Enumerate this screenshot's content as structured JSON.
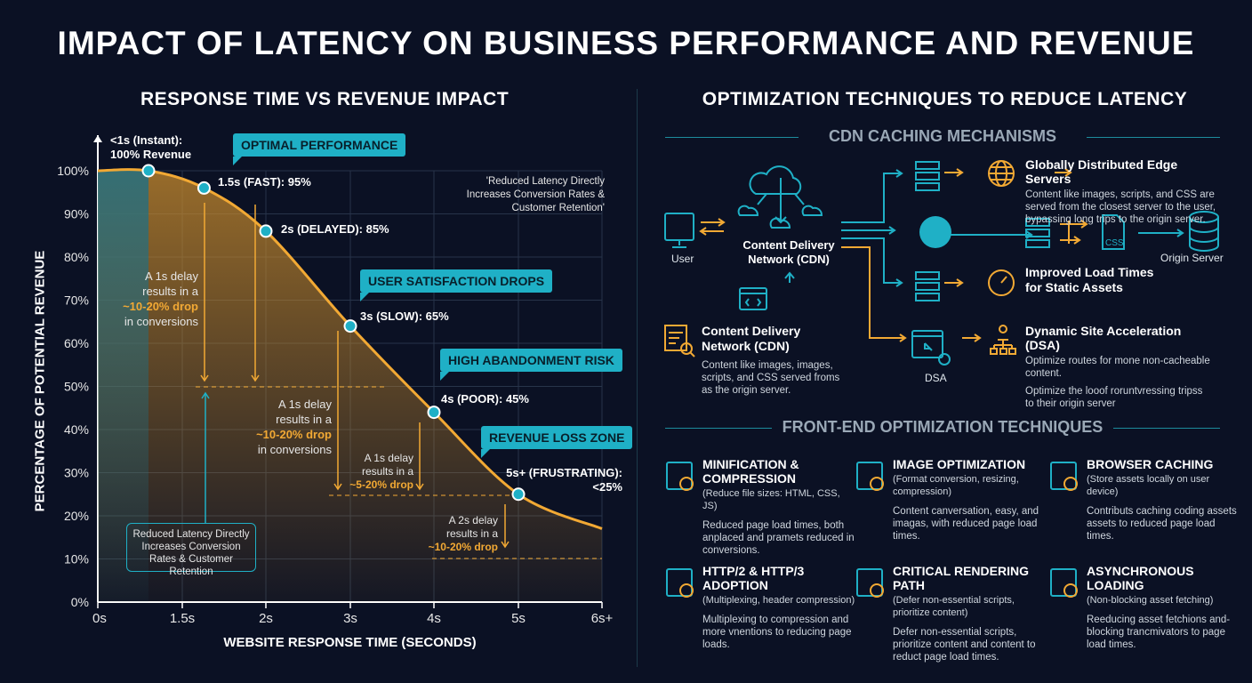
{
  "title": "IMPACT OF LATENCY ON BUSINESS PERFORMANCE AND REVENUE",
  "left": {
    "heading": "RESPONSE TIME VS REVENUE IMPACT",
    "tags": [
      "OPTIMAL PERFORMANCE",
      "USER SATISFACTION DROPS",
      "HIGH ABANDONMENT RISK",
      "REVENUE LOSS ZONE"
    ],
    "quote": "'Reduced Latency Directly Increases Conversion Rates & Customer Retention'",
    "box": "Reduced Latency Directly Increases Conversion Rates & Customer Retention",
    "notes": [
      {
        "l1": "A 1s delay",
        "l2": "results in a",
        "hl": "~10-20% drop",
        "l4": "in conversions"
      },
      {
        "l1": "A 1s delay",
        "l2": "results in a",
        "hl": "~10-20% drop",
        "l4": "in conversions"
      },
      {
        "l1": "A 1s delay",
        "l2": "results in a",
        "hl": "~5-20% drop"
      },
      {
        "l1": "A 2s delay",
        "l2": "results in a",
        "hl": "~10-20% drop"
      }
    ]
  },
  "chart_data": {
    "type": "area",
    "xlabel": "WEBSITE RESPONSE TIME (SECONDS)",
    "ylabel": "PERCENTAGE OF POTENTIAL REVENUE",
    "x_ticks": [
      "0s",
      "1.5s",
      "2s",
      "3s",
      "4s",
      "5s",
      "6s+"
    ],
    "y_ticks": [
      "0%",
      "10%",
      "20%",
      "30%",
      "40%",
      "50%",
      "60%",
      "70%",
      "80%",
      "90%",
      "100%"
    ],
    "ylim": [
      0,
      100
    ],
    "grid": true,
    "points": [
      {
        "x": 0.9,
        "y": 100,
        "label_a": "<1s (Instant):",
        "label_b": "100% Revenue"
      },
      {
        "x": 1.63,
        "y": 96,
        "label_a": "1.5s (FAST): 95%"
      },
      {
        "x": 2,
        "y": 86,
        "label_a": "2s (DELAYED): 85%"
      },
      {
        "x": 3,
        "y": 64,
        "label_a": "3s (SLOW): 65%"
      },
      {
        "x": 4,
        "y": 44,
        "label_a": "4s (POOR): 45%"
      },
      {
        "x": 5,
        "y": 25,
        "label_a": "5s+ (FRUSTRATING):",
        "label_b": "<25%"
      }
    ],
    "curve": [
      [
        0,
        100
      ],
      [
        0.9,
        100
      ],
      [
        1.63,
        96
      ],
      [
        2,
        86
      ],
      [
        3,
        64
      ],
      [
        4,
        44
      ],
      [
        5,
        25
      ],
      [
        6,
        17
      ]
    ]
  },
  "colors": {
    "accent": "#1fb0c6",
    "orange": "#f2a934",
    "bg": "#0b1124"
  },
  "right": {
    "heading": "OPTIMIZATION TECHNIQUES TO REDUCE LATENCY",
    "cdn_heading": "CDN CACHING MECHANISMS",
    "user": "User",
    "cdn": "Content Delivery Network (CDN)",
    "origin": "Origin Server",
    "dsa": "DSA",
    "css": "CSS",
    "items": [
      {
        "title": "Globally Distributed Edge Servers",
        "desc": "Content like images, scripts, and CSS are served from the closest server to the user, bypassing long trips to the origin server."
      },
      {
        "title": "Improved Load Times for Static Assets"
      },
      {
        "title": "Content Delivery Network (CDN)",
        "desc": "Content like images, images, scripts, and CSS served froms as the origin server."
      },
      {
        "title": "Dynamic Site Acceleration (DSA)",
        "desc": "Optimize routes for mone non-cacheable content.",
        "desc2": "Optimize the looof roruntvressing tripss to their origin server"
      }
    ],
    "fe_heading": "FRONT-END OPTIMIZATION TECHNIQUES",
    "fe": [
      {
        "title": "MINIFICATION & COMPRESSION",
        "paren": "(Reduce file sizes: HTML, CSS, JS)",
        "desc": "Reduced page load times, both anplaced and pramets reduced in conversions.",
        "icon": "document-check-icon"
      },
      {
        "title": "IMAGE OPTIMIZATION",
        "paren": "(Format conversion, resizing, compression)",
        "desc": "Content canversation, easy, and imagas, with reduced page load times.",
        "icon": "image-icon"
      },
      {
        "title": "BROWSER CACHING",
        "paren": "(Store assets locally on user device)",
        "desc": "Contributs caching coding assets assets to reduced page load times.",
        "icon": "browser-lock-icon"
      },
      {
        "title": "HTTP/2 & HTTP/3 ADOPTION",
        "paren": "(Multiplexing, header compression)",
        "desc": "Multiplexing to compression and more vnentions to reducing page loads.",
        "icon": "http2-globe-icon"
      },
      {
        "title": "CRITICAL RENDERING PATH",
        "paren": "(Defer non-essential scripts, prioritize content)",
        "desc": "Defer non-essential scripts, prioritize content and content to reduct page load times.",
        "icon": "flowchart-icon"
      },
      {
        "title": "ASYNCHRONOUS LOADING",
        "paren": "(Non-blocking asset fetching)",
        "desc": "Reeducing asset fetchions and-blocking trancmivators to page load times.",
        "icon": "code-window-icon"
      }
    ]
  }
}
